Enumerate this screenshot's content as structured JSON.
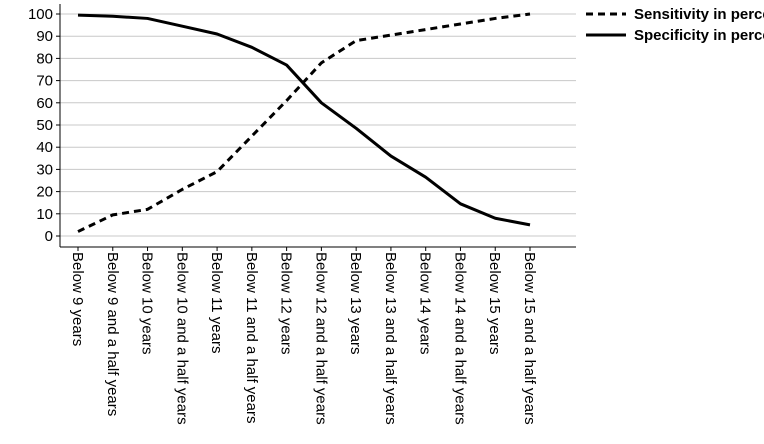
{
  "chart_data": {
    "type": "line",
    "title": "",
    "xlabel": "",
    "ylabel": "",
    "ylim": [
      0,
      100
    ],
    "yticks": [
      0,
      10,
      20,
      30,
      40,
      50,
      60,
      70,
      80,
      90,
      100
    ],
    "grid": "horizontal",
    "legend_position": "top-right",
    "categories": [
      "Below 9 years",
      "Below 9 and a half years",
      "Below 10 years",
      "Below 10 and a half years",
      "Below 11 years",
      "Below 11 and a half years",
      "Below 12 years",
      "Below 12 and a half years",
      "Below 13 years",
      "Below 13 and a half years",
      "Below 14 years",
      "Below 14 and a half years",
      "Below 15 years",
      "Below 15 and a half years"
    ],
    "series": [
      {
        "name": "Sensitivity in percent",
        "style": "dashed",
        "color": "#000000",
        "values": [
          2,
          9.5,
          12,
          21,
          29,
          45,
          61,
          78,
          88,
          90.5,
          93,
          95.5,
          98,
          100
        ]
      },
      {
        "name": "Specificity in percent",
        "style": "solid",
        "color": "#000000",
        "values": [
          99.5,
          99,
          98,
          94.5,
          91,
          85,
          77,
          60,
          48.5,
          36,
          26.5,
          14.5,
          8,
          5
        ]
      }
    ]
  }
}
